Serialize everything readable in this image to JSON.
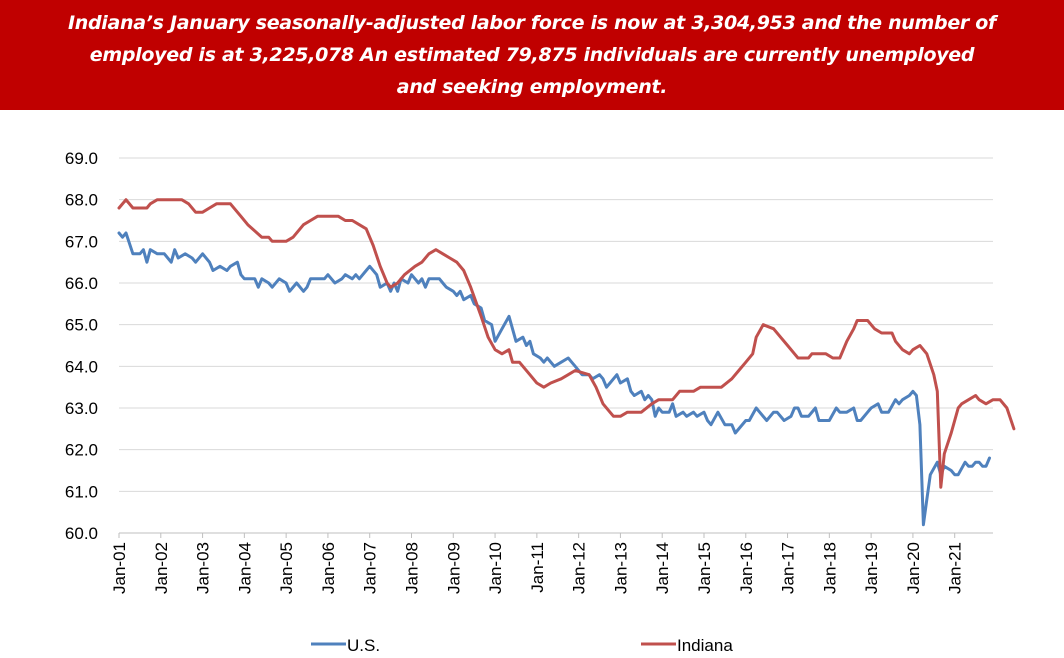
{
  "headline": {
    "line1": "Indiana’s January seasonally-adjusted labor force is now at 3,304,953 and the number of",
    "line2": "employed is at 3,225,078 An estimated 79,875 individuals are currently unemployed",
    "line3": "and seeking employment."
  },
  "colors": {
    "banner": "#c00000",
    "us": "#4f81bd",
    "indiana": "#c0504d",
    "grid": "#d9d9d9"
  },
  "chart_data": {
    "type": "line",
    "title": "",
    "xlabel": "",
    "ylabel": "",
    "ylim": [
      60.0,
      69.0
    ],
    "y_ticks": [
      "60.0",
      "61.0",
      "62.0",
      "63.0",
      "64.0",
      "65.0",
      "66.0",
      "67.0",
      "68.0",
      "69.0"
    ],
    "x_range": [
      "Jan-01",
      "Dec-21"
    ],
    "x_ticks": [
      "Jan-01",
      "Jan-02",
      "Jan-03",
      "Jan-04",
      "Jan-05",
      "Jan-06",
      "Jan-07",
      "Jan-08",
      "Jan-09",
      "Jan-10",
      "Jan-11",
      "Jan-12",
      "Jan-13",
      "Jan-14",
      "Jan-15",
      "Jan-16",
      "Jan-17",
      "Jan-18",
      "Jan-19",
      "Jan-20",
      "Jan-21"
    ],
    "grid": "horizontal",
    "legend_position": "bottom",
    "series": [
      {
        "name": "U.S.",
        "points": [
          [
            "Jan-01",
            67.2
          ],
          [
            "Feb-01",
            67.1
          ],
          [
            "Mar-01",
            67.2
          ],
          [
            "May-01",
            66.7
          ],
          [
            "Jul-01",
            66.7
          ],
          [
            "Aug-01",
            66.8
          ],
          [
            "Sep-01",
            66.5
          ],
          [
            "Oct-01",
            66.8
          ],
          [
            "Dec-01",
            66.7
          ],
          [
            "Feb-02",
            66.7
          ],
          [
            "Apr-02",
            66.5
          ],
          [
            "May-02",
            66.8
          ],
          [
            "Jun-02",
            66.6
          ],
          [
            "Aug-02",
            66.7
          ],
          [
            "Oct-02",
            66.6
          ],
          [
            "Nov-02",
            66.5
          ],
          [
            "Jan-03",
            66.7
          ],
          [
            "Mar-03",
            66.5
          ],
          [
            "Apr-03",
            66.3
          ],
          [
            "Jun-03",
            66.4
          ],
          [
            "Aug-03",
            66.3
          ],
          [
            "Sep-03",
            66.4
          ],
          [
            "Nov-03",
            66.5
          ],
          [
            "Dec-03",
            66.2
          ],
          [
            "Jan-04",
            66.1
          ],
          [
            "Apr-04",
            66.1
          ],
          [
            "May-04",
            65.9
          ],
          [
            "Jun-04",
            66.1
          ],
          [
            "Aug-04",
            66.0
          ],
          [
            "Sep-04",
            65.9
          ],
          [
            "Nov-04",
            66.1
          ],
          [
            "Jan-05",
            66.0
          ],
          [
            "Feb-05",
            65.8
          ],
          [
            "Apr-05",
            66.0
          ],
          [
            "Jun-05",
            65.8
          ],
          [
            "Jul-05",
            65.9
          ],
          [
            "Aug-05",
            66.1
          ],
          [
            "Dec-05",
            66.1
          ],
          [
            "Jan-06",
            66.2
          ],
          [
            "Mar-06",
            66.0
          ],
          [
            "May-06",
            66.1
          ],
          [
            "Jun-06",
            66.2
          ],
          [
            "Aug-06",
            66.1
          ],
          [
            "Sep-06",
            66.2
          ],
          [
            "Oct-06",
            66.1
          ],
          [
            "Dec-06",
            66.3
          ],
          [
            "Jan-07",
            66.4
          ],
          [
            "Mar-07",
            66.2
          ],
          [
            "Apr-07",
            65.9
          ],
          [
            "Jun-07",
            66.0
          ],
          [
            "Jul-07",
            65.8
          ],
          [
            "Aug-07",
            66.0
          ],
          [
            "Sep-07",
            65.8
          ],
          [
            "Oct-07",
            66.1
          ],
          [
            "Dec-07",
            66.0
          ],
          [
            "Jan-08",
            66.2
          ],
          [
            "Mar-08",
            66.0
          ],
          [
            "Apr-08",
            66.1
          ],
          [
            "May-08",
            65.9
          ],
          [
            "Jun-08",
            66.1
          ],
          [
            "Sep-08",
            66.1
          ],
          [
            "Oct-08",
            66.0
          ],
          [
            "Nov-08",
            65.9
          ],
          [
            "Jan-09",
            65.8
          ],
          [
            "Feb-09",
            65.7
          ],
          [
            "Mar-09",
            65.8
          ],
          [
            "Apr-09",
            65.6
          ],
          [
            "Jun-09",
            65.7
          ],
          [
            "Jul-09",
            65.5
          ],
          [
            "Sep-09",
            65.4
          ],
          [
            "Oct-09",
            65.1
          ],
          [
            "Dec-09",
            65.0
          ],
          [
            "Jan-10",
            64.6
          ],
          [
            "Mar-10",
            64.9
          ],
          [
            "May-10",
            65.2
          ],
          [
            "Jul-10",
            64.6
          ],
          [
            "Sep-10",
            64.7
          ],
          [
            "Oct-10",
            64.5
          ],
          [
            "Nov-10",
            64.6
          ],
          [
            "Dec-10",
            64.3
          ],
          [
            "Feb-11",
            64.2
          ],
          [
            "Mar-11",
            64.1
          ],
          [
            "Apr-11",
            64.2
          ],
          [
            "Jun-11",
            64.0
          ],
          [
            "Aug-11",
            64.1
          ],
          [
            "Oct-11",
            64.2
          ],
          [
            "Nov-11",
            64.1
          ],
          [
            "Dec-11",
            64.0
          ],
          [
            "Feb-12",
            63.8
          ],
          [
            "Apr-12",
            63.8
          ],
          [
            "May-12",
            63.7
          ],
          [
            "Jul-12",
            63.8
          ],
          [
            "Aug-12",
            63.7
          ],
          [
            "Sep-12",
            63.5
          ],
          [
            "Oct-12",
            63.6
          ],
          [
            "Dec-12",
            63.8
          ],
          [
            "Jan-13",
            63.6
          ],
          [
            "Mar-13",
            63.7
          ],
          [
            "Apr-13",
            63.4
          ],
          [
            "May-13",
            63.3
          ],
          [
            "Jul-13",
            63.4
          ],
          [
            "Aug-13",
            63.2
          ],
          [
            "Sep-13",
            63.3
          ],
          [
            "Oct-13",
            63.2
          ],
          [
            "Nov-13",
            62.8
          ],
          [
            "Dec-13",
            63.0
          ],
          [
            "Jan-14",
            62.9
          ],
          [
            "Mar-14",
            62.9
          ],
          [
            "Apr-14",
            63.1
          ],
          [
            "May-14",
            62.8
          ],
          [
            "Jul-14",
            62.9
          ],
          [
            "Aug-14",
            62.8
          ],
          [
            "Oct-14",
            62.9
          ],
          [
            "Nov-14",
            62.8
          ],
          [
            "Jan-15",
            62.9
          ],
          [
            "Feb-15",
            62.7
          ],
          [
            "Mar-15",
            62.6
          ],
          [
            "May-15",
            62.9
          ],
          [
            "Jul-15",
            62.6
          ],
          [
            "Sep-15",
            62.6
          ],
          [
            "Oct-15",
            62.4
          ],
          [
            "Jan-16",
            62.7
          ],
          [
            "Feb-16",
            62.7
          ],
          [
            "Apr-16",
            63.0
          ],
          [
            "May-16",
            62.9
          ],
          [
            "Jul-16",
            62.7
          ],
          [
            "Sep-16",
            62.9
          ],
          [
            "Oct-16",
            62.9
          ],
          [
            "Dec-16",
            62.7
          ],
          [
            "Feb-17",
            62.8
          ],
          [
            "Mar-17",
            63.0
          ],
          [
            "Apr-17",
            63.0
          ],
          [
            "May-17",
            62.8
          ],
          [
            "Jul-17",
            62.8
          ],
          [
            "Sep-17",
            63.0
          ],
          [
            "Oct-17",
            62.7
          ],
          [
            "Jan-18",
            62.7
          ],
          [
            "Mar-18",
            63.0
          ],
          [
            "Apr-18",
            62.9
          ],
          [
            "Jun-18",
            62.9
          ],
          [
            "Aug-18",
            63.0
          ],
          [
            "Sep-18",
            62.7
          ],
          [
            "Oct-18",
            62.7
          ],
          [
            "Dec-18",
            62.9
          ],
          [
            "Jan-19",
            63.0
          ],
          [
            "Mar-19",
            63.1
          ],
          [
            "Apr-19",
            62.9
          ],
          [
            "Jun-19",
            62.9
          ],
          [
            "Aug-19",
            63.2
          ],
          [
            "Sep-19",
            63.1
          ],
          [
            "Oct-19",
            63.2
          ],
          [
            "Dec-19",
            63.3
          ],
          [
            "Jan-20",
            63.4
          ],
          [
            "Feb-20",
            63.3
          ],
          [
            "Mar-20",
            62.6
          ],
          [
            "Apr-20",
            60.2
          ],
          [
            "May-20",
            60.8
          ],
          [
            "Jun-20",
            61.4
          ],
          [
            "Aug-20",
            61.7
          ],
          [
            "Sep-20",
            61.4
          ],
          [
            "Oct-20",
            61.6
          ],
          [
            "Dec-20",
            61.5
          ],
          [
            "Jan-21",
            61.4
          ],
          [
            "Feb-21",
            61.4
          ],
          [
            "Apr-21",
            61.7
          ],
          [
            "May-21",
            61.6
          ],
          [
            "Jun-21",
            61.6
          ],
          [
            "Jul-21",
            61.7
          ],
          [
            "Aug-21",
            61.7
          ],
          [
            "Sep-21",
            61.6
          ],
          [
            "Oct-21",
            61.6
          ],
          [
            "Nov-21",
            61.8
          ]
        ]
      },
      {
        "name": "Indiana",
        "points": [
          [
            "Jan-01",
            67.8
          ],
          [
            "Mar-01",
            68.0
          ],
          [
            "May-01",
            67.8
          ],
          [
            "Sep-01",
            67.8
          ],
          [
            "Oct-01",
            67.9
          ],
          [
            "Dec-01",
            68.0
          ],
          [
            "Jul-02",
            68.0
          ],
          [
            "Sep-02",
            67.9
          ],
          [
            "Nov-02",
            67.7
          ],
          [
            "Jan-03",
            67.7
          ],
          [
            "Mar-03",
            67.8
          ],
          [
            "May-03",
            67.9
          ],
          [
            "Sep-03",
            67.9
          ],
          [
            "Dec-03",
            67.6
          ],
          [
            "Feb-04",
            67.4
          ],
          [
            "Jun-04",
            67.1
          ],
          [
            "Aug-04",
            67.1
          ],
          [
            "Sep-04",
            67.0
          ],
          [
            "Nov-04",
            67.0
          ],
          [
            "Jan-05",
            67.0
          ],
          [
            "Mar-05",
            67.1
          ],
          [
            "Jun-05",
            67.4
          ],
          [
            "Aug-05",
            67.5
          ],
          [
            "Oct-05",
            67.6
          ],
          [
            "Apr-06",
            67.6
          ],
          [
            "Jun-06",
            67.5
          ],
          [
            "Aug-06",
            67.5
          ],
          [
            "Oct-06",
            67.4
          ],
          [
            "Dec-06",
            67.3
          ],
          [
            "Feb-07",
            66.9
          ],
          [
            "Apr-07",
            66.4
          ],
          [
            "Jun-07",
            66.0
          ],
          [
            "Jul-07",
            65.9
          ],
          [
            "Sep-07",
            66.0
          ],
          [
            "Nov-07",
            66.2
          ],
          [
            "Feb-08",
            66.4
          ],
          [
            "Apr-08",
            66.5
          ],
          [
            "Jun-08",
            66.7
          ],
          [
            "Aug-08",
            66.8
          ],
          [
            "Oct-08",
            66.7
          ],
          [
            "Dec-08",
            66.6
          ],
          [
            "Feb-09",
            66.5
          ],
          [
            "Apr-09",
            66.3
          ],
          [
            "Jun-09",
            65.9
          ],
          [
            "Sep-09",
            65.2
          ],
          [
            "Nov-09",
            64.7
          ],
          [
            "Jan-10",
            64.4
          ],
          [
            "Mar-10",
            64.3
          ],
          [
            "May-10",
            64.4
          ],
          [
            "Jun-10",
            64.1
          ],
          [
            "Aug-10",
            64.1
          ],
          [
            "Nov-10",
            63.8
          ],
          [
            "Jan-11",
            63.6
          ],
          [
            "Mar-11",
            63.5
          ],
          [
            "May-11",
            63.6
          ],
          [
            "Aug-11",
            63.7
          ],
          [
            "Oct-11",
            63.8
          ],
          [
            "Dec-11",
            63.9
          ],
          [
            "Apr-12",
            63.8
          ],
          [
            "Jun-12",
            63.5
          ],
          [
            "Aug-12",
            63.1
          ],
          [
            "Oct-12",
            62.9
          ],
          [
            "Nov-12",
            62.8
          ],
          [
            "Jan-13",
            62.8
          ],
          [
            "Mar-13",
            62.9
          ],
          [
            "Jul-13",
            62.9
          ],
          [
            "Oct-13",
            63.1
          ],
          [
            "Dec-13",
            63.2
          ],
          [
            "Apr-14",
            63.2
          ],
          [
            "Jun-14",
            63.4
          ],
          [
            "Oct-14",
            63.4
          ],
          [
            "Dec-14",
            63.5
          ],
          [
            "Jun-15",
            63.5
          ],
          [
            "Sep-15",
            63.7
          ],
          [
            "Nov-15",
            63.9
          ],
          [
            "Jan-16",
            64.1
          ],
          [
            "Mar-16",
            64.3
          ],
          [
            "Apr-16",
            64.7
          ],
          [
            "Jun-16",
            65.0
          ],
          [
            "Sep-16",
            64.9
          ],
          [
            "Nov-16",
            64.7
          ],
          [
            "Jan-17",
            64.5
          ],
          [
            "Mar-17",
            64.3
          ],
          [
            "Apr-17",
            64.2
          ],
          [
            "Jul-17",
            64.2
          ],
          [
            "Aug-17",
            64.3
          ],
          [
            "Dec-17",
            64.3
          ],
          [
            "Feb-18",
            64.2
          ],
          [
            "Apr-18",
            64.2
          ],
          [
            "Jun-18",
            64.6
          ],
          [
            "Aug-18",
            64.9
          ],
          [
            "Sep-18",
            65.1
          ],
          [
            "Dec-18",
            65.1
          ],
          [
            "Feb-19",
            64.9
          ],
          [
            "Apr-19",
            64.8
          ],
          [
            "Jul-19",
            64.8
          ],
          [
            "Aug-19",
            64.6
          ],
          [
            "Oct-19",
            64.4
          ],
          [
            "Dec-19",
            64.3
          ],
          [
            "Jan-20",
            64.4
          ],
          [
            "Mar-20",
            64.5
          ],
          [
            "May-20",
            64.3
          ],
          [
            "Jul-20",
            63.8
          ],
          [
            "Aug-20",
            63.4
          ],
          [
            "Sep-20",
            61.1
          ],
          [
            "Oct-20",
            61.9
          ],
          [
            "Dec-20",
            62.4
          ],
          [
            "Feb-21",
            63.0
          ],
          [
            "Mar-21",
            63.1
          ],
          [
            "May-21",
            63.2
          ],
          [
            "Jul-21",
            63.3
          ],
          [
            "Aug-21",
            63.2
          ],
          [
            "Oct-21",
            63.1
          ],
          [
            "Dec-21",
            63.2
          ],
          [
            "Feb-22",
            63.2
          ],
          [
            "Apr-22",
            63.0
          ],
          [
            "Jun-22",
            62.5
          ]
        ]
      }
    ]
  }
}
